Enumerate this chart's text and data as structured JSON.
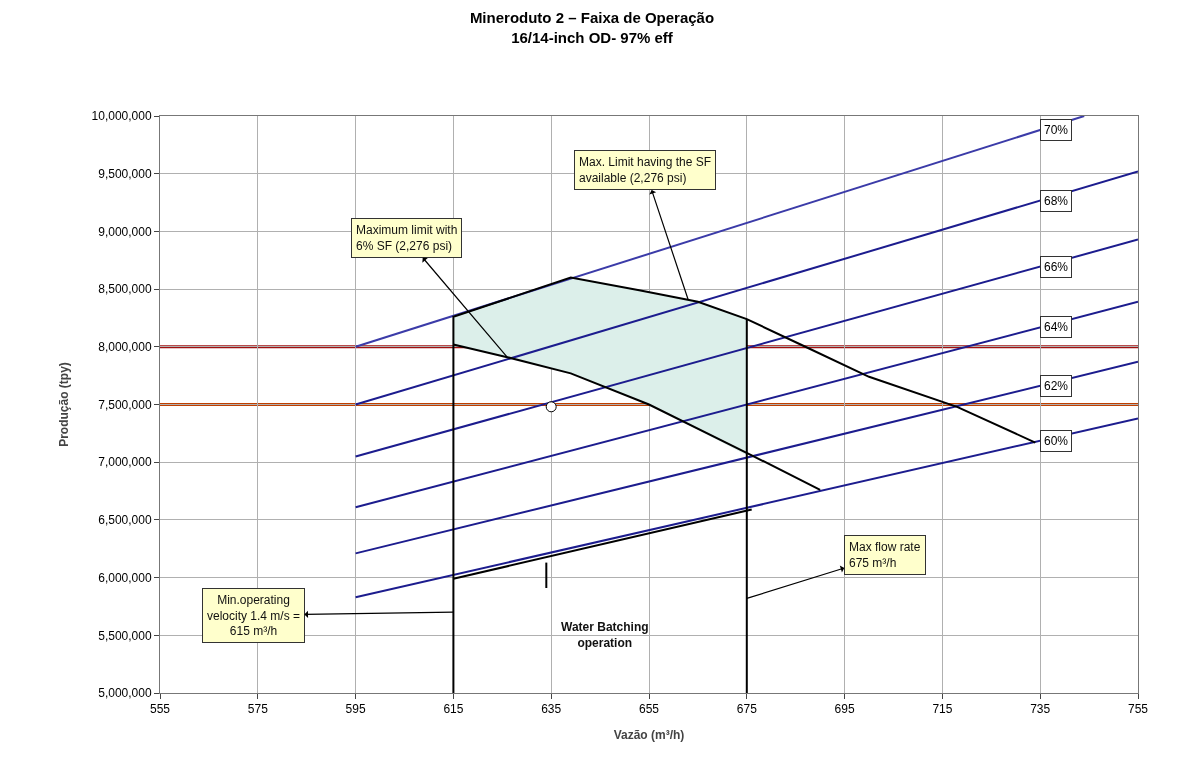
{
  "chart_data": {
    "type": "line",
    "title": "Mineroduto 2 – Faixa de Operação",
    "subtitle": "16/14-inch OD- 97% eff",
    "xlabel": "Vazão (m³/h)",
    "ylabel": "Produção (tpy)",
    "xlim": [
      555,
      755
    ],
    "xticks": [
      555,
      575,
      595,
      615,
      635,
      655,
      675,
      695,
      715,
      735,
      755
    ],
    "ylim": [
      5000000,
      10000000
    ],
    "yticks": [
      {
        "value": 5000000,
        "label": "5,000,000"
      },
      {
        "value": 5500000,
        "label": "5,500,000"
      },
      {
        "value": 6000000,
        "label": "6,000,000"
      },
      {
        "value": 6500000,
        "label": "6,500,000"
      },
      {
        "value": 7000000,
        "label": "7,000,000"
      },
      {
        "value": 7500000,
        "label": "7,500,000"
      },
      {
        "value": 8000000,
        "label": "8,000,000"
      },
      {
        "value": 8500000,
        "label": "8,500,000"
      },
      {
        "value": 9000000,
        "label": "9,000,000"
      },
      {
        "value": 9500000,
        "label": "9,500,000"
      },
      {
        "value": 10000000,
        "label": "10,000,000"
      }
    ],
    "grid": true,
    "legend": false,
    "marker": "none",
    "line_style": "solid",
    "series": [
      {
        "type": "area",
        "color": "#dcefea",
        "x": [
          615,
          615,
          639,
          653,
          665,
          675,
          675,
          655,
          639,
          626,
          615
        ],
        "values": [
          8020000,
          8260000,
          8600000,
          8490000,
          8390000,
          8240000,
          7060000,
          7500000,
          7770000,
          7910000,
          8020000
        ]
      },
      {
        "name": "70%",
        "color": "#3b3ba8",
        "x": [
          595,
          744
        ],
        "values": [
          8000000,
          10000000
        ]
      },
      {
        "name": "68%",
        "color": "#1c1c8e",
        "x": [
          595,
          755
        ],
        "values": [
          7500000,
          9520000
        ]
      },
      {
        "name": "66%",
        "color": "#1c1c8e",
        "x": [
          595,
          755
        ],
        "values": [
          7050000,
          8930000
        ]
      },
      {
        "name": "64%",
        "color": "#1c1c8e",
        "x": [
          595,
          755
        ],
        "values": [
          6610000,
          8390000
        ]
      },
      {
        "name": "62%",
        "color": "#1c1c8e",
        "x": [
          595,
          755
        ],
        "values": [
          6210000,
          7870000
        ]
      },
      {
        "name": "60%",
        "color": "#1c1c8e",
        "x": [
          595,
          755
        ],
        "values": [
          5830000,
          7380000
        ]
      },
      {
        "color": "#000000",
        "x": [
          615,
          615,
          639,
          653,
          665,
          675,
          686,
          700,
          718,
          734,
          null,
          675,
          675,
          null,
          615,
          626,
          639,
          655,
          676,
          690,
          null,
          615,
          676,
          null,
          634,
          634
        ],
        "values": [
          5000000,
          8260000,
          8600000,
          8490000,
          8390000,
          8240000,
          8020000,
          7740000,
          7480000,
          7170000,
          null,
          5000000,
          8240000,
          null,
          8020000,
          7910000,
          7770000,
          7500000,
          7060000,
          6760000,
          null,
          5990000,
          6590000,
          null,
          6130000,
          5910000
        ]
      },
      {
        "type": "scatter",
        "marker": "circle",
        "color": "#ffffff",
        "x": [
          635
        ],
        "values": [
          7480000
        ]
      }
    ],
    "ref_lines": [
      {
        "axis": "y",
        "value": 8000000,
        "color": "#a01010"
      },
      {
        "axis": "y",
        "value": 7500000,
        "color": "#c04000"
      }
    ],
    "annotations": [
      {
        "text": "Maximum limit with\n6% SF (2,276 psi)",
        "x": 626,
        "y": 7910000
      },
      {
        "text": "Max. Limit having the SF\navailable (2,276 psi)",
        "x": 663,
        "y": 8410000
      },
      {
        "text": "Min.operating\nvelocity 1.4 m/s =\n615 m³/h",
        "x": 615,
        "y": 5700000
      },
      {
        "text": "Max flow rate\n675 m³/h",
        "x": 675,
        "y": 5820000
      },
      "Water Batching\noperation"
    ]
  }
}
